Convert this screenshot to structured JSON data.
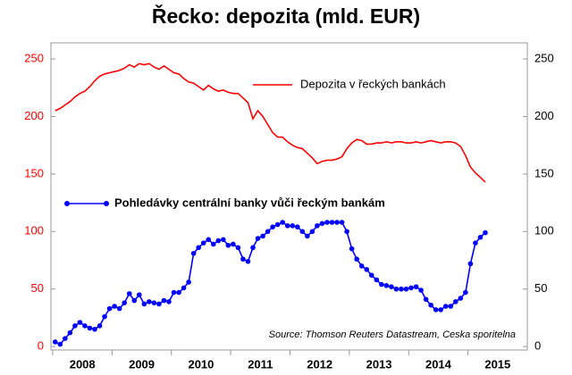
{
  "chart_data": {
    "type": "line",
    "title": "Řecko: depozita (mld. EUR)",
    "source": "Source: Thomson Reuters Datastream, Ceska sporitelna",
    "categories": [
      null,
      null,
      null,
      null,
      null,
      null,
      "2008",
      null,
      null,
      null,
      null,
      null,
      null,
      null,
      null,
      null,
      null,
      null,
      "2009",
      null,
      null,
      null,
      null,
      null,
      null,
      null,
      null,
      null,
      null,
      null,
      "2010",
      null,
      null,
      null,
      null,
      null,
      null,
      null,
      null,
      null,
      null,
      null,
      "2011",
      null,
      null,
      null,
      null,
      null,
      null,
      null,
      null,
      null,
      null,
      null,
      "2012",
      null,
      null,
      null,
      null,
      null,
      null,
      null,
      null,
      null,
      null,
      null,
      "2013",
      null,
      null,
      null,
      null,
      null,
      null,
      null,
      null,
      null,
      null,
      null,
      "2014",
      null,
      null,
      null,
      null,
      null,
      null,
      null,
      null,
      null,
      null,
      null,
      "2015",
      null,
      null,
      null,
      null,
      null
    ],
    "series": [
      {
        "name": "Depozita v řeckých bankách",
        "color": "#ff0000",
        "markers": false,
        "values": [
          205,
          207,
          210,
          213,
          217,
          220,
          222,
          226,
          231,
          235,
          237,
          238,
          239,
          240,
          242,
          245,
          243,
          246,
          245,
          246,
          243,
          241,
          244,
          241,
          238,
          237,
          233,
          230,
          229,
          226,
          223,
          227,
          224,
          222,
          223,
          221,
          220,
          220,
          216,
          212,
          198,
          205,
          200,
          193,
          186,
          182,
          182,
          178,
          175,
          173,
          172,
          168,
          164,
          159,
          161,
          162,
          162,
          163,
          165,
          172,
          177,
          180,
          179,
          176,
          176,
          177,
          177,
          178,
          177,
          178,
          178,
          177,
          177,
          178,
          177,
          178,
          179,
          178,
          177,
          178,
          178,
          177,
          174,
          166,
          156,
          151,
          147,
          143,
          null,
          null,
          null,
          null,
          null,
          null,
          null,
          null
        ]
      },
      {
        "name": "Pohledávky centrální banky vůči řeckým bankám",
        "color": "#0000ff",
        "markers": true,
        "values": [
          4,
          2,
          7,
          12,
          18,
          21,
          18,
          16,
          15,
          18,
          26,
          33,
          35,
          33,
          38,
          46,
          40,
          45,
          37,
          39,
          38,
          37,
          40,
          39,
          47,
          47,
          51,
          56,
          81,
          86,
          90,
          93,
          89,
          92,
          93,
          88,
          89,
          86,
          76,
          74,
          86,
          94,
          96,
          100,
          104,
          106,
          108,
          105,
          105,
          104,
          100,
          96,
          100,
          105,
          107,
          108,
          108,
          108,
          108,
          100,
          85,
          76,
          70,
          67,
          62,
          58,
          54,
          53,
          52,
          50,
          50,
          50,
          51,
          52,
          49,
          41,
          36,
          32,
          32,
          35,
          35,
          39,
          42,
          47,
          72,
          90,
          95,
          99,
          null,
          null,
          null,
          null,
          null,
          null,
          null,
          null
        ]
      }
    ],
    "ylim": [
      -3,
      264
    ],
    "yticks": [
      0,
      50,
      100,
      150,
      200,
      250
    ],
    "y2lim": [
      -3,
      264
    ],
    "y2ticks": [
      0,
      50,
      100,
      150,
      200,
      250
    ],
    "ytick_color": "#ff0000",
    "y2tick_color": "#000000",
    "grid": false
  }
}
